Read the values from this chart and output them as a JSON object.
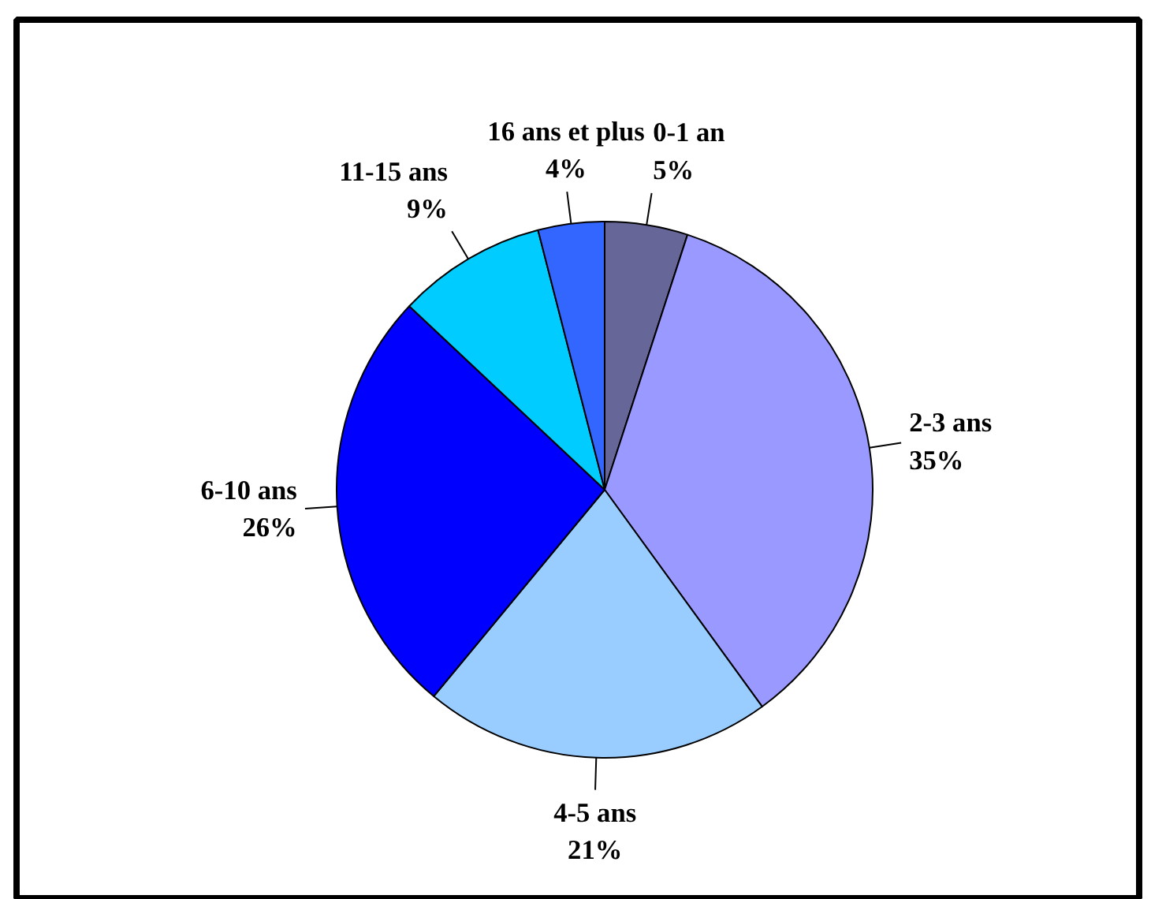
{
  "chart_data": {
    "type": "pie",
    "categories": [
      "0-1 an",
      "2-3 ans",
      "4-5 ans",
      "6-10 ans",
      "11-15 ans",
      "16 ans et plus"
    ],
    "values": [
      5,
      35,
      21,
      26,
      9,
      4
    ],
    "value_labels": [
      "5%",
      "35%",
      "21%",
      "26%",
      "9%",
      "4%"
    ],
    "colors": [
      "#666699",
      "#9999ff",
      "#99ccff",
      "#0000ff",
      "#00ccff",
      "#3366ff"
    ],
    "legend": false
  }
}
